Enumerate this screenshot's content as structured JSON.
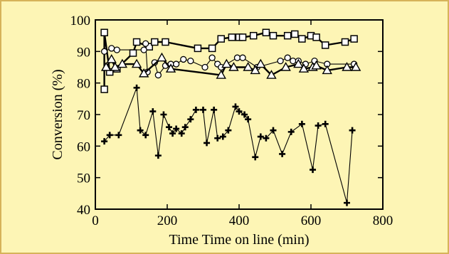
{
  "colors": {
    "background": "#fdf5b5",
    "border": "#d6b35a",
    "ink": "#000000",
    "marker_fill": "#ffffff"
  },
  "chart_data": {
    "type": "scatter",
    "xlabel": "Time Time on line (min)",
    "ylabel": "Conversion (%)",
    "xlim": [
      0,
      800
    ],
    "ylim": [
      40,
      100
    ],
    "xticks": [
      0,
      200,
      400,
      600,
      800
    ],
    "yticks": [
      40,
      50,
      60,
      70,
      80,
      90,
      100
    ],
    "grid": false,
    "series": [
      {
        "marker": "square",
        "line": "thick",
        "points": [
          [
            25,
            78
          ],
          [
            25,
            96
          ],
          [
            40,
            83.5
          ],
          [
            60,
            84.5
          ],
          [
            105,
            89.5
          ],
          [
            115,
            93
          ],
          [
            150,
            91.5
          ],
          [
            165,
            93
          ],
          [
            195,
            93
          ],
          [
            285,
            91
          ],
          [
            325,
            91
          ],
          [
            350,
            94
          ],
          [
            380,
            94.5
          ],
          [
            400,
            94.5
          ],
          [
            410,
            94.5
          ],
          [
            440,
            95
          ],
          [
            475,
            96
          ],
          [
            495,
            95
          ],
          [
            535,
            95
          ],
          [
            555,
            95.5
          ],
          [
            575,
            94
          ],
          [
            600,
            95
          ],
          [
            615,
            94.5
          ],
          [
            640,
            92
          ],
          [
            695,
            93
          ],
          [
            720,
            94
          ]
        ]
      },
      {
        "marker": "circle",
        "line": "thin",
        "points": [
          [
            25,
            90
          ],
          [
            45,
            91
          ],
          [
            60,
            90.5
          ],
          [
            135,
            90.5
          ],
          [
            140,
            92.5
          ],
          [
            145,
            83.5
          ],
          [
            165,
            86.5
          ],
          [
            175,
            82.5
          ],
          [
            195,
            85.5
          ],
          [
            210,
            86
          ],
          [
            225,
            86
          ],
          [
            245,
            87.5
          ],
          [
            265,
            87
          ],
          [
            305,
            85
          ],
          [
            325,
            88
          ],
          [
            340,
            86
          ],
          [
            350,
            85
          ],
          [
            395,
            88
          ],
          [
            410,
            88
          ],
          [
            450,
            85
          ],
          [
            515,
            87
          ],
          [
            535,
            88
          ],
          [
            550,
            87
          ],
          [
            565,
            87
          ],
          [
            585,
            86
          ],
          [
            610,
            87
          ],
          [
            645,
            86
          ],
          [
            720,
            86
          ]
        ]
      },
      {
        "marker": "triangle",
        "line": "thick",
        "points": [
          [
            30,
            85
          ],
          [
            45,
            87.5
          ],
          [
            55,
            85
          ],
          [
            75,
            86
          ],
          [
            115,
            86
          ],
          [
            135,
            83
          ],
          [
            185,
            88
          ],
          [
            210,
            84.5
          ],
          [
            350,
            82.5
          ],
          [
            365,
            86
          ],
          [
            385,
            85
          ],
          [
            425,
            85
          ],
          [
            445,
            84
          ],
          [
            460,
            86
          ],
          [
            490,
            82.5
          ],
          [
            530,
            85
          ],
          [
            565,
            86
          ],
          [
            580,
            84.5
          ],
          [
            605,
            85
          ],
          [
            615,
            85.5
          ],
          [
            645,
            84
          ],
          [
            700,
            85
          ],
          [
            725,
            85
          ]
        ]
      },
      {
        "marker": "plus",
        "line": "thin",
        "points": [
          [
            25,
            61.5
          ],
          [
            40,
            63.5
          ],
          [
            65,
            63.5
          ],
          [
            115,
            78.5
          ],
          [
            125,
            65
          ],
          [
            140,
            63.5
          ],
          [
            160,
            71
          ],
          [
            175,
            57
          ],
          [
            190,
            70
          ],
          [
            205,
            66
          ],
          [
            215,
            64
          ],
          [
            225,
            65.5
          ],
          [
            240,
            64
          ],
          [
            250,
            66
          ],
          [
            265,
            68.5
          ],
          [
            280,
            71.5
          ],
          [
            300,
            71.5
          ],
          [
            310,
            61
          ],
          [
            330,
            71.5
          ],
          [
            340,
            62.5
          ],
          [
            355,
            63
          ],
          [
            370,
            65
          ],
          [
            390,
            72.5
          ],
          [
            400,
            71
          ],
          [
            415,
            70
          ],
          [
            425,
            68.5
          ],
          [
            445,
            56.5
          ],
          [
            460,
            63
          ],
          [
            475,
            62.5
          ],
          [
            495,
            65
          ],
          [
            520,
            57.5
          ],
          [
            545,
            64.5
          ],
          [
            575,
            67
          ],
          [
            605,
            52.5
          ],
          [
            620,
            66.5
          ],
          [
            640,
            67
          ],
          [
            700,
            42
          ],
          [
            715,
            65
          ]
        ]
      }
    ]
  }
}
